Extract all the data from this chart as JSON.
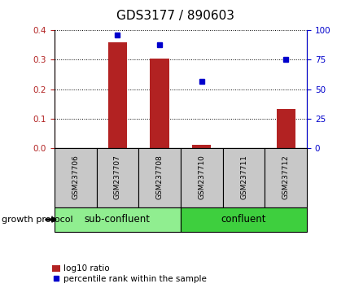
{
  "title": "GDS3177 / 890603",
  "samples": [
    "GSM237706",
    "GSM237707",
    "GSM237708",
    "GSM237710",
    "GSM237711",
    "GSM237712"
  ],
  "log10_ratio": [
    0.0,
    0.36,
    0.305,
    0.013,
    0.002,
    0.132
  ],
  "percentile_rank": [
    null,
    96,
    88,
    57,
    null,
    75
  ],
  "ylim_left": [
    0,
    0.4
  ],
  "ylim_right": [
    0,
    100
  ],
  "yticks_left": [
    0,
    0.1,
    0.2,
    0.3,
    0.4
  ],
  "yticks_right": [
    0,
    25,
    50,
    75,
    100
  ],
  "bar_color": "#b22222",
  "dot_color": "#0000cc",
  "group_colors": [
    "#90ee90",
    "#3ecf3e"
  ],
  "group_labels": [
    "sub-confluent",
    "confluent"
  ],
  "group_label": "growth protocol",
  "legend_bar_label": "log10 ratio",
  "legend_dot_label": "percentile rank within the sample",
  "title_fontsize": 11,
  "tick_fontsize": 7.5,
  "sample_fontsize": 6.5,
  "group_fontsize": 8.5,
  "legend_fontsize": 7.5
}
